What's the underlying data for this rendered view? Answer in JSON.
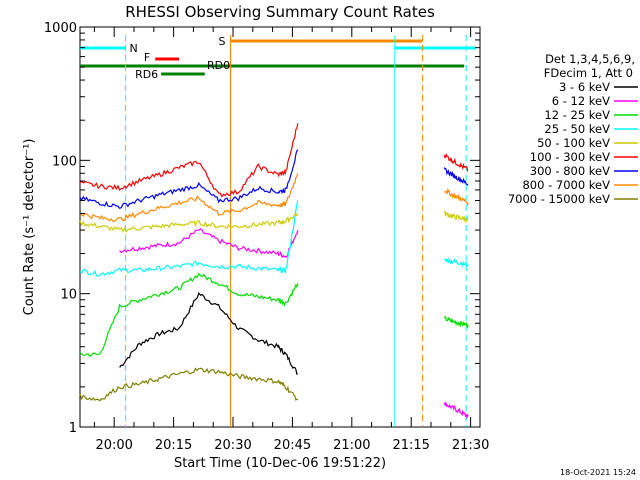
{
  "chart_data": {
    "type": "line",
    "title": "RHESSI Observing Summary Count Rates",
    "xlabel": "Start Time (10-Dec-06 19:51:22)",
    "ylabel": "Count Rate (s⁻¹ detector⁻¹)",
    "y_scale": "log",
    "ylim": [
      1,
      1000
    ],
    "xlim_minutes_after_start": [
      0,
      101
    ],
    "yticks": [
      {
        "value": 1,
        "label": "1"
      },
      {
        "value": 10,
        "label": "10"
      },
      {
        "value": 100,
        "label": "100"
      },
      {
        "value": 1000,
        "label": "1000"
      }
    ],
    "xticks": [
      {
        "minute": 8.633,
        "label": "20:00"
      },
      {
        "minute": 23.633,
        "label": "20:15"
      },
      {
        "minute": 38.633,
        "label": "20:30"
      },
      {
        "minute": 53.633,
        "label": "20:45"
      },
      {
        "minute": 68.633,
        "label": "21:00"
      },
      {
        "minute": 83.633,
        "label": "21:15"
      },
      {
        "minute": 98.633,
        "label": "21:30"
      }
    ],
    "legend": {
      "placement": "right",
      "header": [
        "Det 1,3,4,5,6,9,",
        "FDecim 1, Att 0"
      ],
      "entries": [
        {
          "label": "3 - 6 keV",
          "color": "#000000"
        },
        {
          "label": "6 - 12 keV",
          "color": "#ff00ff"
        },
        {
          "label": "12 - 25 keV",
          "color": "#00dd00"
        },
        {
          "label": "25 - 50 keV",
          "color": "#00ffff"
        },
        {
          "label": "50 - 100 keV",
          "color": "#cccc00"
        },
        {
          "label": "100 - 300 keV",
          "color": "#ff0000"
        },
        {
          "label": "300 - 800 keV",
          "color": "#0000ff"
        },
        {
          "label": "800 - 7000 keV",
          "color": "#ff8800"
        },
        {
          "label": "7000 - 15000 keV",
          "color": "#808000"
        }
      ]
    },
    "series": [
      {
        "name": "3 - 6 keV",
        "color": "#000000",
        "segments": [
          {
            "x": [
              0,
              5,
              10,
              15,
              20,
              25,
              30,
              35,
              40,
              45,
              50,
              52,
              55
            ],
            "y": [
              null,
              null,
              2.8,
              4.2,
              5.0,
              5.5,
              10,
              8,
              5.5,
              4.5,
              4.0,
              3.5,
              2.5
            ]
          }
        ]
      },
      {
        "name": "6 - 12 keV",
        "color": "#ff00ff",
        "segments": [
          {
            "x": [
              0,
              5,
              10,
              15,
              20,
              25,
              30,
              35,
              40,
              45,
              50,
              52,
              55
            ],
            "y": [
              null,
              null,
              21,
              22,
              23,
              24,
              30,
              25,
              22,
              21,
              20,
              19,
              30
            ]
          },
          {
            "x": [
              92,
              94,
              96,
              98
            ],
            "y": [
              1.5,
              1.4,
              1.3,
              1.2
            ]
          }
        ]
      },
      {
        "name": "12 - 25 keV",
        "color": "#00dd00",
        "segments": [
          {
            "x": [
              0,
              5,
              10,
              15,
              20,
              25,
              30,
              35,
              40,
              45,
              50,
              52,
              55
            ],
            "y": [
              3.5,
              3.5,
              8,
              9,
              10,
              11,
              14,
              12,
              10,
              9.5,
              9,
              8.5,
              12
            ]
          },
          {
            "x": [
              92,
              94,
              96,
              98
            ],
            "y": [
              6.5,
              6.2,
              6.0,
              5.8
            ]
          }
        ]
      },
      {
        "name": "25 - 50 keV",
        "color": "#00ffff",
        "segments": [
          {
            "x": [
              0,
              5,
              10,
              15,
              20,
              25,
              30,
              35,
              40,
              45,
              50,
              52,
              55
            ],
            "y": [
              15,
              14,
              15,
              15,
              15.5,
              16,
              17,
              16,
              16,
              15.5,
              15,
              15,
              50
            ]
          },
          {
            "x": [
              92,
              94,
              96,
              98
            ],
            "y": [
              18,
              17.5,
              17,
              16.5
            ]
          }
        ]
      },
      {
        "name": "50 - 100 keV",
        "color": "#cccc00",
        "segments": [
          {
            "x": [
              0,
              5,
              10,
              15,
              20,
              25,
              30,
              35,
              40,
              45,
              50,
              52,
              55
            ],
            "y": [
              34,
              32,
              30,
              31,
              32,
              33,
              34,
              32,
              32,
              33,
              34,
              35,
              40
            ]
          },
          {
            "x": [
              92,
              94,
              96,
              98
            ],
            "y": [
              40,
              38,
              37,
              36
            ]
          }
        ]
      },
      {
        "name": "100 - 300 keV",
        "color": "#ff0000",
        "segments": [
          {
            "x": [
              0,
              5,
              10,
              15,
              20,
              25,
              30,
              35,
              40,
              45,
              50,
              52,
              55
            ],
            "y": [
              68,
              64,
              62,
              70,
              78,
              88,
              98,
              55,
              58,
              90,
              78,
              82,
              190
            ]
          },
          {
            "x": [
              92,
              94,
              96,
              98
            ],
            "y": [
              110,
              100,
              92,
              85
            ]
          }
        ]
      },
      {
        "name": "300 - 800 keV",
        "color": "#0000ff",
        "segments": [
          {
            "x": [
              0,
              5,
              10,
              15,
              20,
              25,
              30,
              35,
              40,
              45,
              50,
              52,
              55
            ],
            "y": [
              52,
              48,
              45,
              50,
              55,
              60,
              65,
              50,
              52,
              62,
              58,
              60,
              120
            ]
          },
          {
            "x": [
              92,
              94,
              96,
              98
            ],
            "y": [
              85,
              78,
              72,
              66
            ]
          }
        ]
      },
      {
        "name": "800 - 7000 keV",
        "color": "#ff8800",
        "segments": [
          {
            "x": [
              0,
              5,
              10,
              15,
              20,
              25,
              30,
              35,
              40,
              45,
              50,
              52,
              55
            ],
            "y": [
              40,
              37,
              36,
              40,
              44,
              48,
              52,
              40,
              42,
              48,
              46,
              47,
              80
            ]
          },
          {
            "x": [
              92,
              94,
              96,
              98
            ],
            "y": [
              60,
              55,
              52,
              48
            ]
          }
        ]
      },
      {
        "name": "7000 - 15000 keV",
        "color": "#808000",
        "segments": [
          {
            "x": [
              0,
              5,
              10,
              15,
              20,
              25,
              30,
              35,
              40,
              45,
              50,
              52,
              55
            ],
            "y": [
              1.7,
              1.6,
              2.0,
              2.1,
              2.3,
              2.5,
              2.7,
              2.6,
              2.4,
              2.3,
              2.2,
              2.0,
              1.6
            ]
          }
        ]
      }
    ],
    "state_bars": [
      {
        "label": "N",
        "color": "#00ffff",
        "ranges": [
          [
            0,
            11.5
          ],
          [
            79.5,
            100
          ]
        ]
      },
      {
        "label": "F",
        "color": "#ff0000",
        "ranges": [
          [
            19,
            25
          ]
        ]
      },
      {
        "label": "S",
        "color": "#ff8800",
        "ranges": [
          [
            38,
            86.5
          ]
        ]
      },
      {
        "label": "RD0",
        "color": "#008000",
        "ranges": [
          [
            0,
            97
          ]
        ]
      },
      {
        "label": "RD6",
        "color": "#008000",
        "ranges": [
          [
            20.5,
            31.5
          ]
        ]
      }
    ],
    "vertical_markers": [
      {
        "minute": 11.5,
        "color": "#00ffff",
        "style": "dashed"
      },
      {
        "minute": 38,
        "color": "#ff8800",
        "style": "solid"
      },
      {
        "minute": 79.5,
        "color": "#00ffff",
        "style": "solid"
      },
      {
        "minute": 86.5,
        "color": "#ff8800",
        "style": "dashed"
      },
      {
        "minute": 97.5,
        "color": "#00ffff",
        "style": "dashed"
      }
    ],
    "grid": false,
    "footer_stamp": "18-Oct-2021 15:24"
  }
}
